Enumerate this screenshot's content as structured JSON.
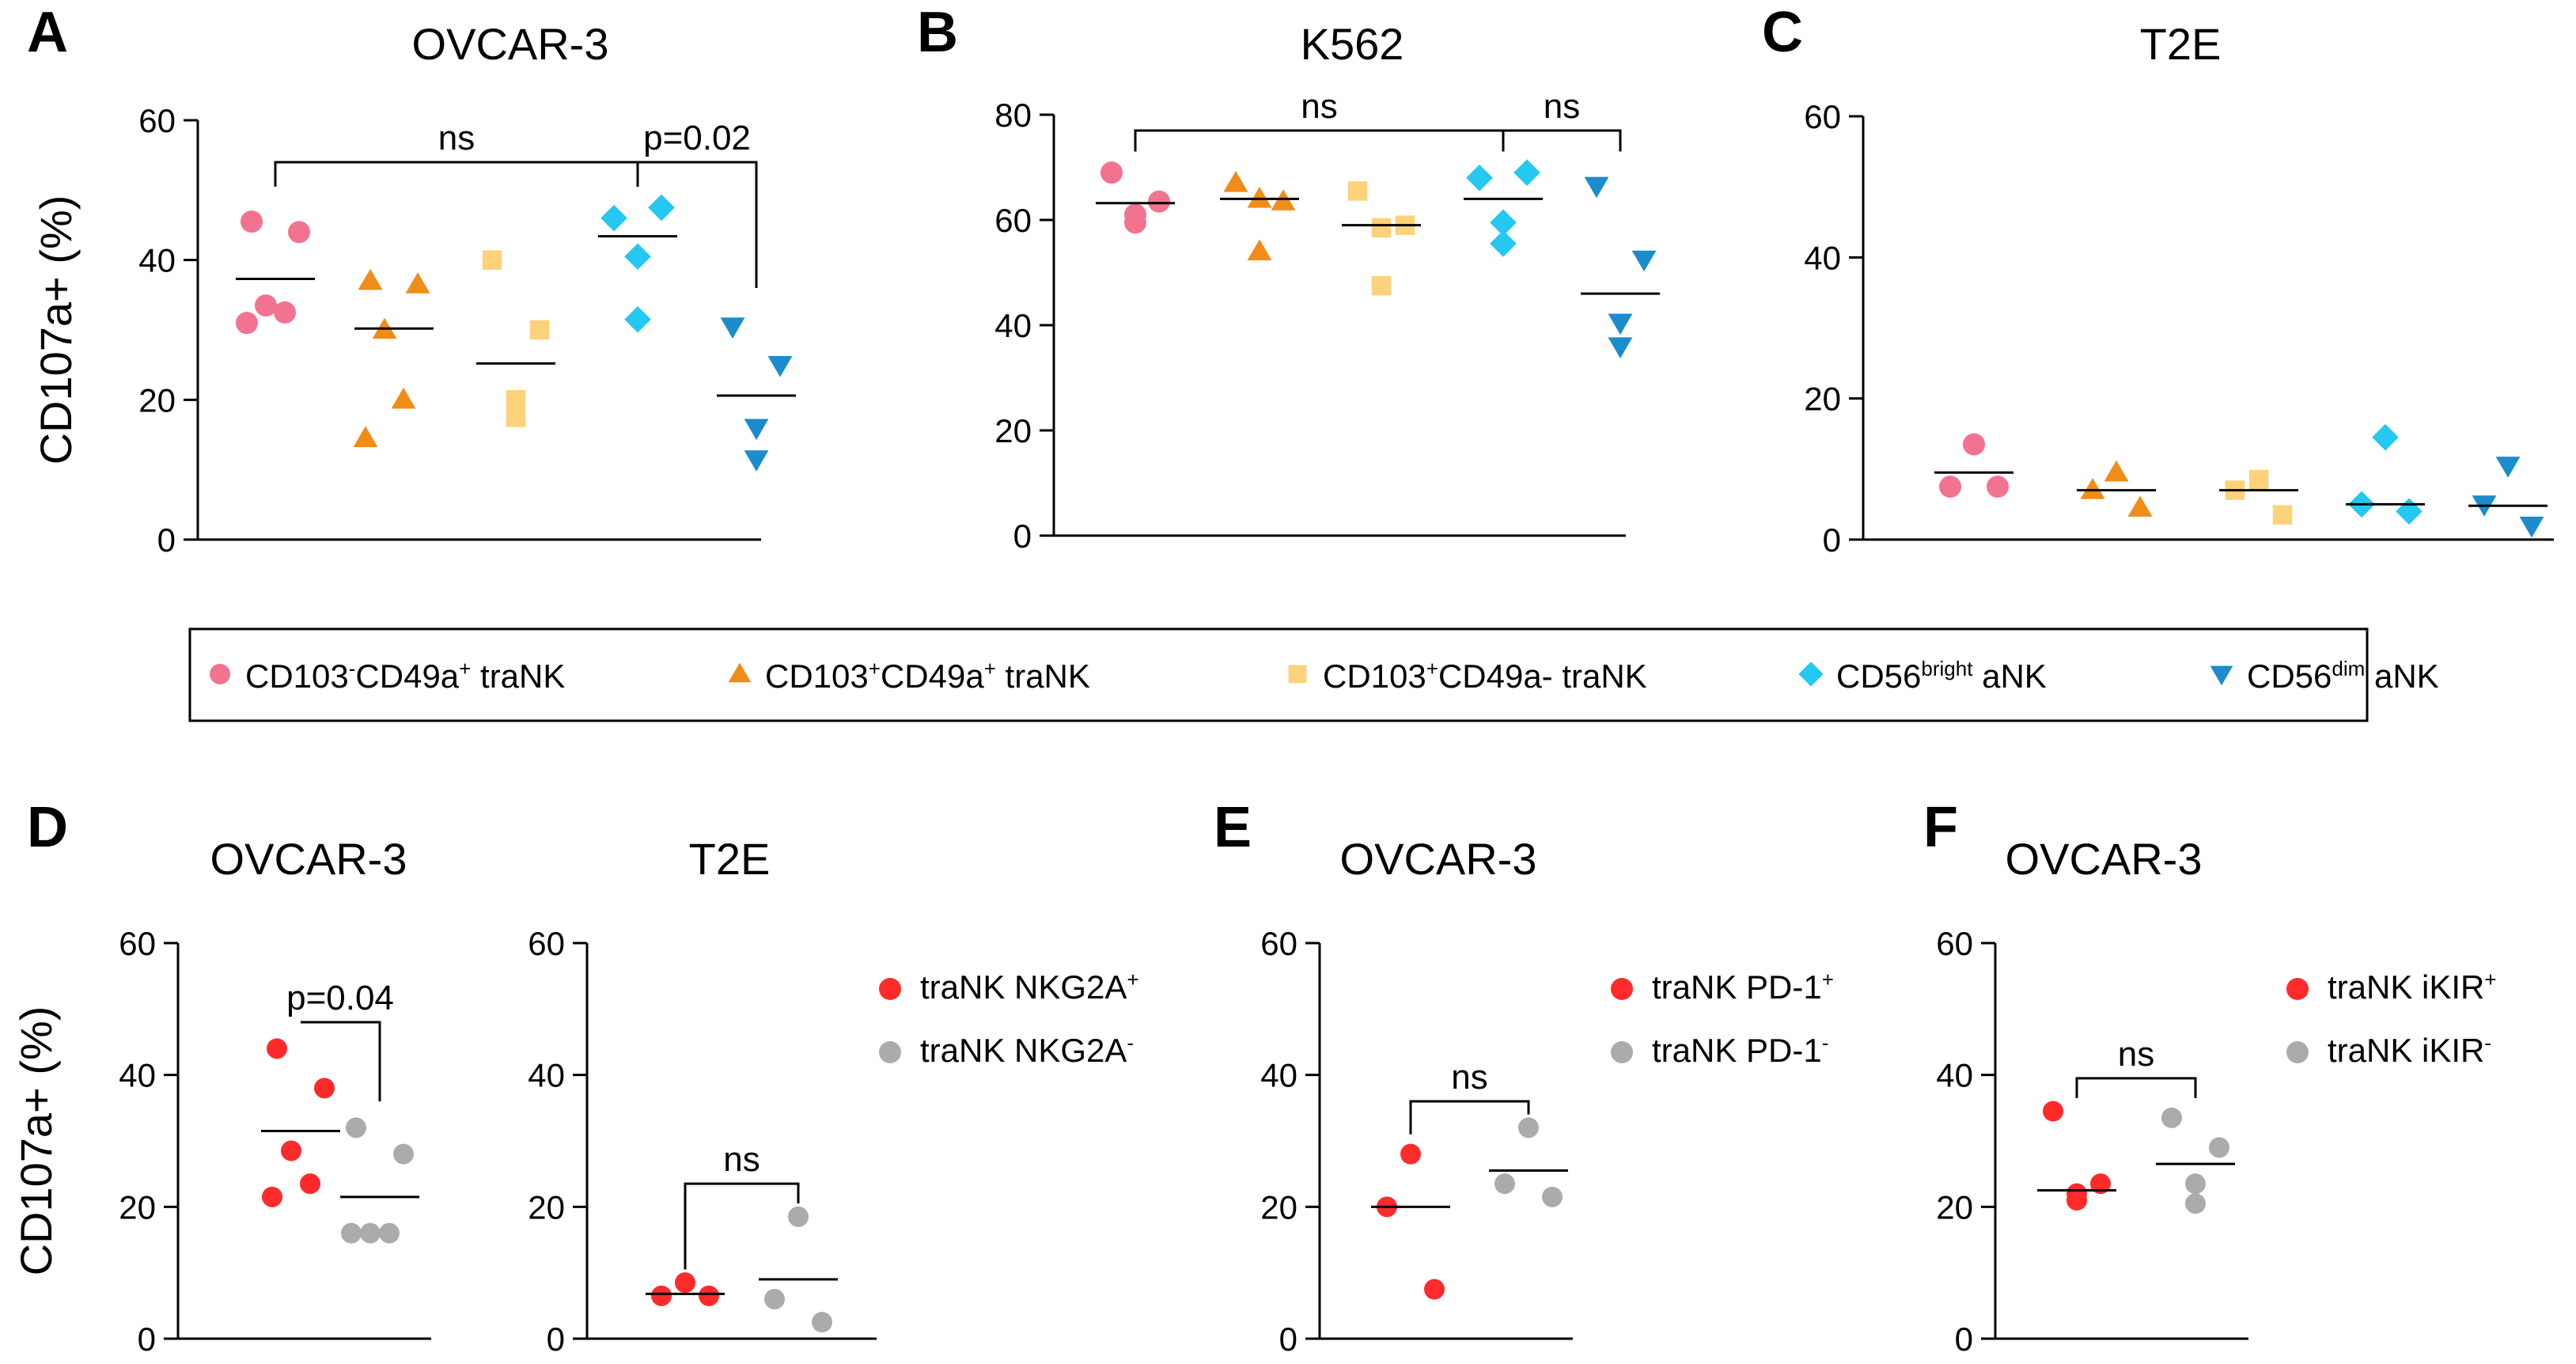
{
  "ylabel": "CD107a+ (%)",
  "colors": {
    "pink": "#f27390",
    "orange": "#f28c18",
    "yellow": "#fcd27a",
    "cyan": "#24c8f0",
    "blue": "#1b8ccc",
    "red": "#ff2a2a",
    "gray": "#ababab"
  },
  "legend_top": {
    "items": [
      {
        "shape": "circle",
        "color": "#f27390",
        "parts": [
          [
            "CD103",
            ""
          ],
          [
            "-",
            "sup"
          ],
          [
            "CD49a",
            ""
          ],
          [
            "+",
            "sup"
          ],
          [
            " traNK",
            ""
          ]
        ]
      },
      {
        "shape": "triangle",
        "color": "#f28c18",
        "parts": [
          [
            "CD103",
            ""
          ],
          [
            "+",
            "sup"
          ],
          [
            "CD49a",
            ""
          ],
          [
            "+",
            "sup"
          ],
          [
            " traNK",
            ""
          ]
        ]
      },
      {
        "shape": "square",
        "color": "#fcd27a",
        "parts": [
          [
            "CD103",
            ""
          ],
          [
            "+",
            "sup"
          ],
          [
            "CD49a- traNK",
            ""
          ]
        ]
      },
      {
        "shape": "diamond",
        "color": "#24c8f0",
        "parts": [
          [
            "CD56",
            ""
          ],
          [
            "bright",
            "sup"
          ],
          [
            " aNK",
            ""
          ]
        ]
      },
      {
        "shape": "tridown",
        "color": "#1b8ccc",
        "parts": [
          [
            "CD56",
            ""
          ],
          [
            "dim",
            "sup"
          ],
          [
            " aNK",
            ""
          ]
        ]
      }
    ]
  },
  "chart_data": [
    {
      "panel": "A",
      "title": "OVCAR-3",
      "type": "scatter",
      "ylim": [
        0,
        60
      ],
      "yticks": [
        0,
        20,
        40,
        60
      ],
      "show_ylabel": true,
      "groups": [
        {
          "name": "CD103-CD49a+ traNK",
          "shape": "circle",
          "color": "#f27390",
          "values": [
            45.5,
            44,
            33.5,
            32.5,
            31
          ],
          "mean": 37.3
        },
        {
          "name": "CD103+CD49a+ traNK",
          "shape": "triangle",
          "color": "#f28c18",
          "values": [
            37,
            36.5,
            30,
            20,
            14.5
          ],
          "mean": 30.2
        },
        {
          "name": "CD103+CD49a- traNK",
          "shape": "square",
          "color": "#fcd27a",
          "values": [
            40,
            30,
            20,
            17.5
          ],
          "mean": 25.2
        },
        {
          "name": "CD56bright aNK",
          "shape": "diamond",
          "color": "#24c8f0",
          "values": [
            46,
            47.5,
            40.5,
            31.5
          ],
          "mean": 43.4
        },
        {
          "name": "CD56dim aNK",
          "shape": "tridown",
          "color": "#1b8ccc",
          "values": [
            30.5,
            25,
            16,
            11.5
          ],
          "mean": 20.6
        }
      ],
      "comparisons": [
        {
          "from": 0,
          "to": 3,
          "label": "ns",
          "y": 54,
          "drop_from": 50.5,
          "drop_to": 50.5
        },
        {
          "from": 3,
          "to": 4,
          "label": "p=0.02",
          "y": 54,
          "drop_from": 50.5,
          "drop_to": 36
        }
      ]
    },
    {
      "panel": "B",
      "title": "K562",
      "type": "scatter",
      "ylim": [
        0,
        80
      ],
      "yticks": [
        0,
        20,
        40,
        60,
        80
      ],
      "show_ylabel": false,
      "groups": [
        {
          "name": "CD103-CD49a+ traNK",
          "shape": "circle",
          "color": "#f27390",
          "values": [
            69,
            63.5,
            61,
            59.5
          ],
          "mean": 63.2
        },
        {
          "name": "CD103+CD49a+ traNK",
          "shape": "triangle",
          "color": "#f28c18",
          "values": [
            67,
            63.5,
            64,
            54
          ],
          "mean": 64
        },
        {
          "name": "CD103+CD49a- traNK",
          "shape": "square",
          "color": "#fcd27a",
          "values": [
            65.5,
            59,
            58.5,
            47.5
          ],
          "mean": 59
        },
        {
          "name": "CD56bright aNK",
          "shape": "diamond",
          "color": "#24c8f0",
          "values": [
            68,
            69,
            59.5,
            55.5
          ],
          "mean": 64
        },
        {
          "name": "CD56dim aNK",
          "shape": "tridown",
          "color": "#1b8ccc",
          "values": [
            66.5,
            52.5,
            40.5,
            36
          ],
          "mean": 46
        }
      ],
      "comparisons": [
        {
          "from": 0,
          "to": 3,
          "label": "ns",
          "y": 77,
          "drop_from": 73,
          "drop_to": 73
        },
        {
          "from": 3,
          "to": 4,
          "label": "ns",
          "y": 77,
          "drop_from": 73,
          "drop_to": 73
        }
      ]
    },
    {
      "panel": "C",
      "title": "T2E",
      "type": "scatter",
      "ylim": [
        0,
        60
      ],
      "yticks": [
        0,
        20,
        40,
        60
      ],
      "show_ylabel": false,
      "groups": [
        {
          "name": "CD103-CD49a+ traNK",
          "shape": "circle",
          "color": "#f27390",
          "values": [
            13.5,
            7.5,
            7.5
          ],
          "mean": 9.5
        },
        {
          "name": "CD103+CD49a+ traNK",
          "shape": "triangle",
          "color": "#f28c18",
          "values": [
            9.5,
            7,
            4.5
          ],
          "mean": 7
        },
        {
          "name": "CD103+CD49a- traNK",
          "shape": "square",
          "color": "#fcd27a",
          "values": [
            8.5,
            7,
            3.5
          ],
          "mean": 7
        },
        {
          "name": "CD56bright aNK",
          "shape": "diamond",
          "color": "#24c8f0",
          "values": [
            14.5,
            5,
            4
          ],
          "mean": 5
        },
        {
          "name": "CD56dim aNK",
          "shape": "tridown",
          "color": "#1b8ccc",
          "values": [
            10.5,
            5,
            2
          ],
          "mean": 4.8
        }
      ],
      "comparisons": []
    },
    {
      "panel": "D",
      "title": "OVCAR-3",
      "type": "scatter",
      "ylim": [
        0,
        60
      ],
      "yticks": [
        0,
        20,
        40,
        60
      ],
      "show_ylabel": true,
      "groups": [
        {
          "name": "traNK NKG2A+",
          "shape": "circle",
          "color": "#ff2a2a",
          "values": [
            44,
            38,
            28.5,
            23.5,
            21.5
          ],
          "mean": 31.5
        },
        {
          "name": "traNK NKG2A-",
          "shape": "circle",
          "color": "#ababab",
          "values": [
            32,
            28,
            16,
            16,
            16
          ],
          "mean": 21.5
        }
      ],
      "comparisons": [
        {
          "from": 0,
          "to": 1,
          "label": "p=0.04",
          "y": 48,
          "drop_from": 48,
          "drop_to": 36
        }
      ]
    },
    {
      "panel": "",
      "title": "T2E",
      "type": "scatter",
      "ylim": [
        0,
        60
      ],
      "yticks": [
        0,
        20,
        40,
        60
      ],
      "show_ylabel": false,
      "groups": [
        {
          "name": "traNK NKG2A+",
          "shape": "circle",
          "color": "#ff2a2a",
          "values": [
            8.5,
            6.5,
            6.5
          ],
          "mean": 6.8
        },
        {
          "name": "traNK NKG2A-",
          "shape": "circle",
          "color": "#ababab",
          "values": [
            18.5,
            6,
            2.5
          ],
          "mean": 9
        }
      ],
      "comparisons": [
        {
          "from": 0,
          "to": 1,
          "label": "ns",
          "y": 23.5,
          "drop_from": 10.5,
          "drop_to": 20.5
        }
      ],
      "legend": [
        {
          "color": "#ff2a2a",
          "parts": [
            [
              "traNK NKG2A",
              ""
            ],
            [
              "+",
              "sup"
            ]
          ]
        },
        {
          "color": "#ababab",
          "parts": [
            [
              "traNK NKG2A",
              ""
            ],
            [
              "-",
              "sup"
            ]
          ]
        }
      ]
    },
    {
      "panel": "E",
      "title": "OVCAR-3",
      "type": "scatter",
      "ylim": [
        0,
        60
      ],
      "yticks": [
        0,
        20,
        40,
        60
      ],
      "show_ylabel": false,
      "groups": [
        {
          "name": "traNK PD-1+",
          "shape": "circle",
          "color": "#ff2a2a",
          "values": [
            28,
            20,
            7.5
          ],
          "mean": 20
        },
        {
          "name": "traNK PD-1-",
          "shape": "circle",
          "color": "#ababab",
          "values": [
            32,
            23.5,
            21.5
          ],
          "mean": 25.5
        }
      ],
      "comparisons": [
        {
          "from": 0,
          "to": 1,
          "label": "ns",
          "y": 36,
          "drop_from": 31,
          "drop_to": 34
        }
      ],
      "legend": [
        {
          "color": "#ff2a2a",
          "parts": [
            [
              "traNK PD-1",
              ""
            ],
            [
              "+",
              "sup"
            ]
          ]
        },
        {
          "color": "#ababab",
          "parts": [
            [
              "traNK PD-1",
              ""
            ],
            [
              "-",
              "sup"
            ]
          ]
        }
      ]
    },
    {
      "panel": "F",
      "title": "OVCAR-3",
      "type": "scatter",
      "ylim": [
        0,
        60
      ],
      "yticks": [
        0,
        20,
        40,
        60
      ],
      "show_ylabel": false,
      "groups": [
        {
          "name": "traNK iKIR+",
          "shape": "circle",
          "color": "#ff2a2a",
          "values": [
            34.5,
            23.5,
            22,
            21
          ],
          "mean": 22.5
        },
        {
          "name": "traNK iKIR-",
          "shape": "circle",
          "color": "#ababab",
          "values": [
            33.5,
            29,
            23.5,
            20.5
          ],
          "mean": 26.5
        }
      ],
      "comparisons": [
        {
          "from": 0,
          "to": 1,
          "label": "ns",
          "y": 39.5,
          "drop_from": 36.5,
          "drop_to": 36.5
        }
      ],
      "legend": [
        {
          "color": "#ff2a2a",
          "parts": [
            [
              "traNK iKIR",
              ""
            ],
            [
              "+",
              "sup"
            ]
          ]
        },
        {
          "color": "#ababab",
          "parts": [
            [
              "traNK iKIR",
              ""
            ],
            [
              "-",
              "sup"
            ]
          ]
        }
      ]
    }
  ]
}
